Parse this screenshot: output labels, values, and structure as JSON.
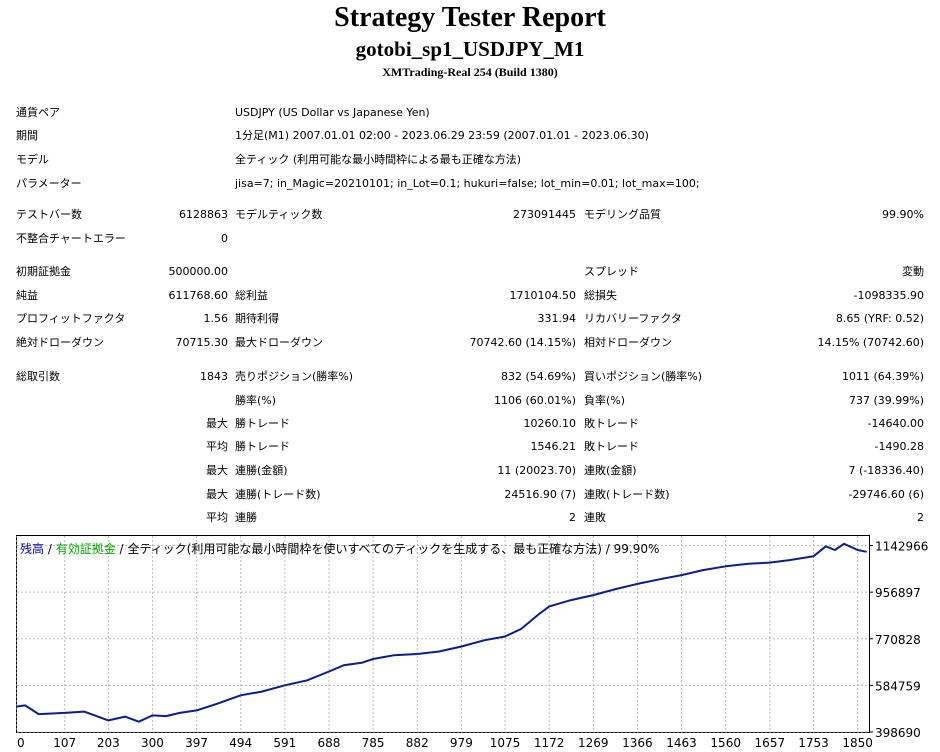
{
  "header": {
    "title": "Strategy Tester Report",
    "subtitle": "gotobi_sp1_USDJPY_M1",
    "server": "XMTrading-Real 254 (Build 1380)"
  },
  "settings": [
    {
      "label": "通貨ペア",
      "value": "USDJPY (US Dollar vs Japanese Yen)"
    },
    {
      "label": "期間",
      "value": "1分足(M1) 2007.01.01 02:00 - 2023.06.29 23:59 (2007.01.01 - 2023.06.30)"
    },
    {
      "label": "モデル",
      "value": "全ティック (利用可能な最小時間枠による最も正確な方法)"
    },
    {
      "label": "パラメーター",
      "value": "jisa=7; in_Magic=20210101; in_Lot=0.1; hukuri=false; lot_min=0.01; lot_max=100;"
    }
  ],
  "stats": {
    "bars_label": "テストバー数",
    "bars": "6128863",
    "ticks_label": "モデルティック数",
    "ticks": "273091445",
    "quality_label": "モデリング品質",
    "quality": "99.90%",
    "mismatch_label": "不整合チャートエラー",
    "mismatch": "0",
    "deposit_label": "初期証拠金",
    "deposit": "500000.00",
    "spread_label": "スプレッド",
    "spread": "変動",
    "net_label": "純益",
    "net": "611768.60",
    "gross_profit_label": "総利益",
    "gross_profit": "1710104.50",
    "gross_loss_label": "総損失",
    "gross_loss": "-1098335.90",
    "pf_label": "プロフィットファクタ",
    "pf": "1.56",
    "expected_label": "期待利得",
    "expected": "331.94",
    "recovery_label": "リカバリーファクタ",
    "recovery": "8.65 (YRF: 0.52)",
    "abs_dd_label": "絶対ドローダウン",
    "abs_dd": "70715.30",
    "max_dd_label": "最大ドローダウン",
    "max_dd": "70742.60 (14.15%)",
    "rel_dd_label": "相対ドローダウン",
    "rel_dd": "14.15% (70742.60)",
    "trades_label": "総取引数",
    "trades": "1843",
    "short_label": "売りポジション(勝率%)",
    "short": "832 (54.69%)",
    "long_label": "買いポジション(勝率%)",
    "long": "1011 (64.39%)",
    "win_rate_label": "勝率(%)",
    "win_rate": "1106 (60.01%)",
    "loss_rate_label": "負率(%)",
    "loss_rate": "737 (39.99%)",
    "q_max": "最大",
    "q_avg": "平均",
    "win_trade_label": "勝トレード",
    "loss_trade_label": "敗トレード",
    "max_win": "10260.10",
    "max_loss": "-14640.00",
    "avg_win": "1546.21",
    "avg_loss": "-1490.28",
    "consec_win_money_label": "連勝(金額)",
    "consec_win_money": "11 (20023.70)",
    "consec_loss_money_label": "連敗(金額)",
    "consec_loss_money": "7 (-18336.40)",
    "consec_win_count_label": "連勝(トレード数)",
    "consec_win_count": "24516.90 (7)",
    "consec_loss_count_label": "連敗(トレード数)",
    "consec_loss_count": "-29746.60 (6)",
    "streak_win_label": "連勝",
    "streak_win": "2",
    "streak_loss_label": "連敗",
    "streak_loss": "2"
  },
  "chart_legend": {
    "balance": "残高",
    "sep1": " / ",
    "equity": "有効証拠金",
    "sep2": " / ",
    "rest": "全ティック(利用可能な最小時間枠を使いすべてのティックを生成する、最も正確な方法) / 99.90%",
    "balance_color": "#0000aa",
    "equity_color": "#00aa00"
  },
  "chart_data": {
    "type": "line",
    "series": [
      {
        "name": "残高",
        "color": "#0a1e8c",
        "x": [
          0,
          20,
          50,
          107,
          150,
          203,
          240,
          270,
          300,
          330,
          360,
          397,
          440,
          494,
          540,
          591,
          640,
          688,
          720,
          760,
          785,
          830,
          882,
          930,
          979,
          1030,
          1075,
          1110,
          1150,
          1172,
          1220,
          1269,
          1320,
          1366,
          1420,
          1463,
          1510,
          1560,
          1610,
          1657,
          1700,
          1753,
          1780,
          1800,
          1820,
          1850,
          1870
        ],
        "values": [
          500000,
          505000,
          470000,
          475000,
          480000,
          445000,
          460000,
          440000,
          465000,
          462000,
          475000,
          485000,
          510000,
          545000,
          560000,
          585000,
          605000,
          640000,
          665000,
          675000,
          690000,
          705000,
          710000,
          720000,
          740000,
          765000,
          780000,
          810000,
          870000,
          900000,
          925000,
          945000,
          970000,
          990000,
          1010000,
          1025000,
          1045000,
          1060000,
          1070000,
          1075000,
          1085000,
          1100000,
          1140000,
          1125000,
          1150000,
          1125000,
          1118000
        ]
      }
    ],
    "x_ticks": [
      0,
      107,
      203,
      300,
      397,
      494,
      591,
      688,
      785,
      882,
      979,
      1075,
      1172,
      1269,
      1366,
      1463,
      1560,
      1657,
      1753,
      1850
    ],
    "y_ticks": [
      1142966,
      956897,
      770828,
      584759,
      398690
    ],
    "xlim": [
      0,
      1875
    ],
    "ylim": [
      398690,
      1185000
    ],
    "grid": true
  }
}
